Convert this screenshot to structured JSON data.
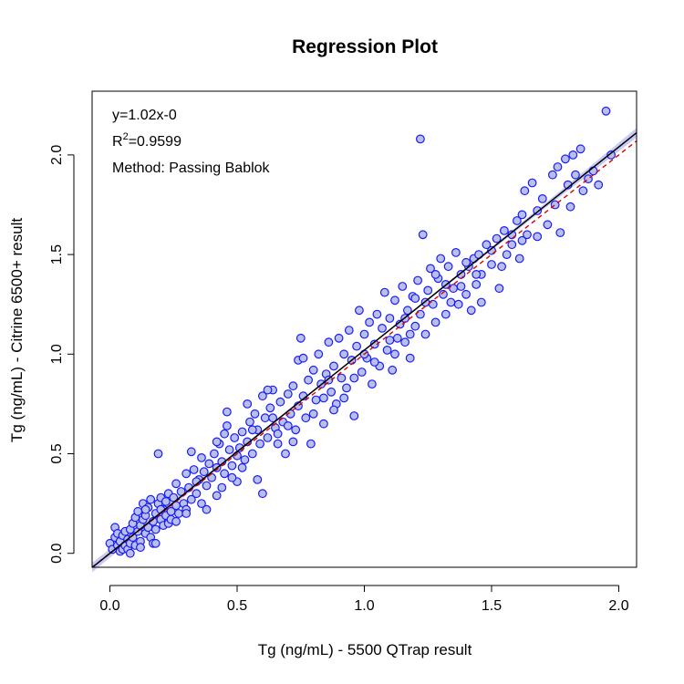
{
  "chart_data": {
    "type": "scatter",
    "title": "Regression Plot",
    "xlabel": "Tg (ng/mL) - 5500 QTrap result",
    "ylabel": "Tg (ng/mL) - Citrine 6500+ result",
    "xlim": [
      -0.07,
      2.07
    ],
    "ylim": [
      -0.07,
      2.32
    ],
    "x_ticks": [
      0.0,
      0.5,
      1.0,
      1.5,
      2.0
    ],
    "x_tick_labels": [
      "0.0",
      "0.5",
      "1.0",
      "1.5",
      "2.0"
    ],
    "y_ticks": [
      0.0,
      0.5,
      1.0,
      1.5,
      2.0
    ],
    "y_tick_labels": [
      "0.0",
      "0.5",
      "1.0",
      "1.5",
      "2.0"
    ],
    "grid": false,
    "annotations": {
      "equation": "y=1.02x-0",
      "r2_prefix": "R",
      "r2_sup": "2",
      "r2_value": "=0.9599",
      "method": "Method: Passing Bablok"
    },
    "regression_line": {
      "slope": 1.02,
      "intercept": 0.0,
      "color": "#000000"
    },
    "identity_line": {
      "slope": 1.0,
      "intercept": 0.0,
      "color": "#dd0000",
      "style": "dashed"
    },
    "confidence_band_color": "#b3b3f0",
    "point_fill": "#b8c0e8",
    "point_edge": "#1a1aff",
    "points": [
      [
        0.0,
        0.05
      ],
      [
        0.01,
        0.02
      ],
      [
        0.02,
        0.08
      ],
      [
        0.02,
        0.13
      ],
      [
        0.03,
        0.04
      ],
      [
        0.03,
        0.1
      ],
      [
        0.04,
        0.01
      ],
      [
        0.04,
        0.06
      ],
      [
        0.05,
        0.02
      ],
      [
        0.05,
        0.09
      ],
      [
        0.06,
        0.11
      ],
      [
        0.06,
        0.04
      ],
      [
        0.07,
        0.07
      ],
      [
        0.07,
        0.02
      ],
      [
        0.08,
        0.12
      ],
      [
        0.08,
        0.05
      ],
      [
        0.09,
        0.15
      ],
      [
        0.09,
        0.08
      ],
      [
        0.1,
        0.18
      ],
      [
        0.1,
        0.04
      ],
      [
        0.11,
        0.21
      ],
      [
        0.11,
        0.11
      ],
      [
        0.12,
        0.14
      ],
      [
        0.12,
        0.06
      ],
      [
        0.13,
        0.25
      ],
      [
        0.13,
        0.17
      ],
      [
        0.14,
        0.1
      ],
      [
        0.14,
        0.19
      ],
      [
        0.15,
        0.13
      ],
      [
        0.15,
        0.23
      ],
      [
        0.16,
        0.08
      ],
      [
        0.16,
        0.27
      ],
      [
        0.17,
        0.16
      ],
      [
        0.17,
        0.05
      ],
      [
        0.18,
        0.2
      ],
      [
        0.18,
        0.12
      ],
      [
        0.19,
        0.5
      ],
      [
        0.19,
        0.25
      ],
      [
        0.2,
        0.17
      ],
      [
        0.2,
        0.28
      ],
      [
        0.21,
        0.14
      ],
      [
        0.21,
        0.22
      ],
      [
        0.22,
        0.26
      ],
      [
        0.22,
        0.19
      ],
      [
        0.23,
        0.3
      ],
      [
        0.23,
        0.15
      ],
      [
        0.24,
        0.21
      ],
      [
        0.25,
        0.28
      ],
      [
        0.26,
        0.35
      ],
      [
        0.26,
        0.24
      ],
      [
        0.27,
        0.2
      ],
      [
        0.28,
        0.31
      ],
      [
        0.29,
        0.25
      ],
      [
        0.3,
        0.4
      ],
      [
        0.3,
        0.22
      ],
      [
        0.31,
        0.33
      ],
      [
        0.32,
        0.51
      ],
      [
        0.32,
        0.27
      ],
      [
        0.33,
        0.42
      ],
      [
        0.34,
        0.3
      ],
      [
        0.35,
        0.37
      ],
      [
        0.36,
        0.48
      ],
      [
        0.36,
        0.25
      ],
      [
        0.37,
        0.41
      ],
      [
        0.38,
        0.34
      ],
      [
        0.39,
        0.45
      ],
      [
        0.4,
        0.38
      ],
      [
        0.41,
        0.5
      ],
      [
        0.42,
        0.43
      ],
      [
        0.42,
        0.29
      ],
      [
        0.43,
        0.55
      ],
      [
        0.44,
        0.46
      ],
      [
        0.45,
        0.6
      ],
      [
        0.45,
        0.4
      ],
      [
        0.46,
        0.64
      ],
      [
        0.47,
        0.52
      ],
      [
        0.48,
        0.44
      ],
      [
        0.49,
        0.58
      ],
      [
        0.5,
        0.49
      ],
      [
        0.5,
        0.36
      ],
      [
        0.51,
        0.53
      ],
      [
        0.52,
        0.61
      ],
      [
        0.53,
        0.47
      ],
      [
        0.54,
        0.75
      ],
      [
        0.54,
        0.56
      ],
      [
        0.55,
        0.66
      ],
      [
        0.56,
        0.5
      ],
      [
        0.57,
        0.7
      ],
      [
        0.58,
        0.37
      ],
      [
        0.58,
        0.62
      ],
      [
        0.59,
        0.55
      ],
      [
        0.6,
        0.79
      ],
      [
        0.6,
        0.3
      ],
      [
        0.61,
        0.68
      ],
      [
        0.62,
        0.58
      ],
      [
        0.63,
        0.73
      ],
      [
        0.64,
        0.82
      ],
      [
        0.65,
        0.63
      ],
      [
        0.66,
        0.55
      ],
      [
        0.67,
        0.76
      ],
      [
        0.68,
        0.66
      ],
      [
        0.69,
        0.5
      ],
      [
        0.7,
        0.8
      ],
      [
        0.71,
        0.7
      ],
      [
        0.72,
        0.84
      ],
      [
        0.73,
        0.62
      ],
      [
        0.74,
        0.97
      ],
      [
        0.74,
        0.74
      ],
      [
        0.75,
        1.08
      ],
      [
        0.76,
        0.79
      ],
      [
        0.77,
        0.68
      ],
      [
        0.78,
        0.87
      ],
      [
        0.79,
        0.55
      ],
      [
        0.8,
        0.92
      ],
      [
        0.81,
        0.77
      ],
      [
        0.82,
        1.0
      ],
      [
        0.83,
        0.85
      ],
      [
        0.84,
        0.65
      ],
      [
        0.85,
        0.9
      ],
      [
        0.86,
        1.06
      ],
      [
        0.87,
        0.81
      ],
      [
        0.88,
        0.94
      ],
      [
        0.89,
        0.75
      ],
      [
        0.9,
        1.08
      ],
      [
        0.91,
        0.88
      ],
      [
        0.92,
        1.0
      ],
      [
        0.93,
        0.83
      ],
      [
        0.94,
        1.12
      ],
      [
        0.95,
        0.97
      ],
      [
        0.96,
        0.69
      ],
      [
        0.97,
        1.04
      ],
      [
        0.98,
        1.22
      ],
      [
        0.99,
        0.91
      ],
      [
        1.0,
        1.1
      ],
      [
        1.01,
        0.98
      ],
      [
        1.02,
        1.16
      ],
      [
        1.03,
        0.85
      ],
      [
        1.04,
        1.05
      ],
      [
        1.05,
        1.2
      ],
      [
        1.06,
        0.94
      ],
      [
        1.07,
        1.13
      ],
      [
        1.08,
        1.31
      ],
      [
        1.09,
        1.02
      ],
      [
        1.1,
        1.18
      ],
      [
        1.11,
        0.92
      ],
      [
        1.12,
        1.27
      ],
      [
        1.13,
        1.08
      ],
      [
        1.14,
        1.15
      ],
      [
        1.15,
        1.34
      ],
      [
        1.16,
        1.06
      ],
      [
        1.17,
        1.22
      ],
      [
        1.18,
        0.98
      ],
      [
        1.19,
        1.29
      ],
      [
        1.2,
        1.14
      ],
      [
        1.21,
        1.37
      ],
      [
        1.22,
        2.08
      ],
      [
        1.22,
        1.2
      ],
      [
        1.23,
        1.6
      ],
      [
        1.24,
        1.1
      ],
      [
        1.25,
        1.32
      ],
      [
        1.26,
        1.43
      ],
      [
        1.27,
        1.25
      ],
      [
        1.28,
        1.16
      ],
      [
        1.29,
        1.38
      ],
      [
        1.3,
        1.48
      ],
      [
        1.31,
        1.3
      ],
      [
        1.32,
        1.2
      ],
      [
        1.33,
        1.44
      ],
      [
        1.35,
        1.33
      ],
      [
        1.36,
        1.51
      ],
      [
        1.37,
        1.25
      ],
      [
        1.38,
        1.4
      ],
      [
        1.4,
        1.3
      ],
      [
        1.41,
        1.44
      ],
      [
        1.42,
        1.22
      ],
      [
        1.43,
        1.48
      ],
      [
        1.44,
        1.35
      ],
      [
        1.45,
        1.5
      ],
      [
        1.46,
        1.4
      ],
      [
        1.48,
        1.55
      ],
      [
        1.5,
        1.45
      ],
      [
        1.52,
        1.58
      ],
      [
        1.53,
        1.33
      ],
      [
        1.55,
        1.62
      ],
      [
        1.56,
        1.5
      ],
      [
        1.58,
        1.55
      ],
      [
        1.6,
        1.67
      ],
      [
        1.61,
        1.48
      ],
      [
        1.62,
        1.7
      ],
      [
        1.63,
        1.82
      ],
      [
        1.64,
        1.6
      ],
      [
        1.66,
        1.86
      ],
      [
        1.68,
        1.72
      ],
      [
        1.7,
        1.78
      ],
      [
        1.72,
        1.65
      ],
      [
        1.74,
        1.9
      ],
      [
        1.75,
        1.75
      ],
      [
        1.76,
        1.94
      ],
      [
        1.77,
        1.61
      ],
      [
        1.79,
        1.98
      ],
      [
        1.8,
        1.85
      ],
      [
        1.81,
        1.74
      ],
      [
        1.82,
        2.0
      ],
      [
        1.83,
        1.9
      ],
      [
        1.85,
        2.03
      ],
      [
        1.86,
        1.82
      ],
      [
        1.88,
        1.88
      ],
      [
        1.9,
        1.92
      ],
      [
        1.92,
        1.85
      ],
      [
        1.95,
        2.22
      ],
      [
        1.97,
        2.0
      ],
      [
        0.42,
        0.56
      ],
      [
        0.46,
        0.71
      ],
      [
        0.62,
        0.82
      ],
      [
        0.64,
        0.68
      ],
      [
        0.72,
        0.56
      ],
      [
        0.76,
        0.98
      ],
      [
        0.86,
        0.87
      ],
      [
        0.88,
        0.72
      ],
      [
        0.92,
        0.78
      ],
      [
        1.1,
        1.07
      ],
      [
        1.18,
        1.1
      ],
      [
        1.28,
        1.4
      ],
      [
        1.34,
        1.26
      ],
      [
        1.46,
        1.26
      ],
      [
        1.54,
        1.44
      ],
      [
        1.68,
        1.59
      ],
      [
        0.3,
        0.2
      ],
      [
        0.24,
        0.17
      ],
      [
        0.18,
        0.05
      ],
      [
        0.14,
        0.22
      ],
      [
        0.08,
        0.0
      ],
      [
        0.12,
        0.03
      ],
      [
        0.2,
        0.22
      ],
      [
        0.26,
        0.16
      ],
      [
        0.34,
        0.36
      ],
      [
        0.38,
        0.22
      ],
      [
        0.44,
        0.33
      ],
      [
        0.48,
        0.38
      ],
      [
        0.52,
        0.43
      ],
      [
        0.56,
        0.62
      ],
      [
        0.66,
        0.6
      ],
      [
        0.7,
        0.64
      ],
      [
        0.8,
        0.7
      ],
      [
        0.84,
        0.78
      ],
      [
        0.96,
        0.88
      ],
      [
        1.0,
        1.0
      ],
      [
        1.04,
        0.96
      ],
      [
        1.12,
        1.0
      ],
      [
        1.16,
        1.18
      ],
      [
        1.2,
        1.28
      ],
      [
        1.24,
        1.26
      ],
      [
        1.32,
        1.35
      ],
      [
        1.38,
        1.34
      ],
      [
        1.4,
        1.46
      ],
      [
        1.44,
        1.4
      ],
      [
        1.5,
        1.52
      ],
      [
        1.58,
        1.6
      ],
      [
        1.62,
        1.57
      ]
    ]
  }
}
